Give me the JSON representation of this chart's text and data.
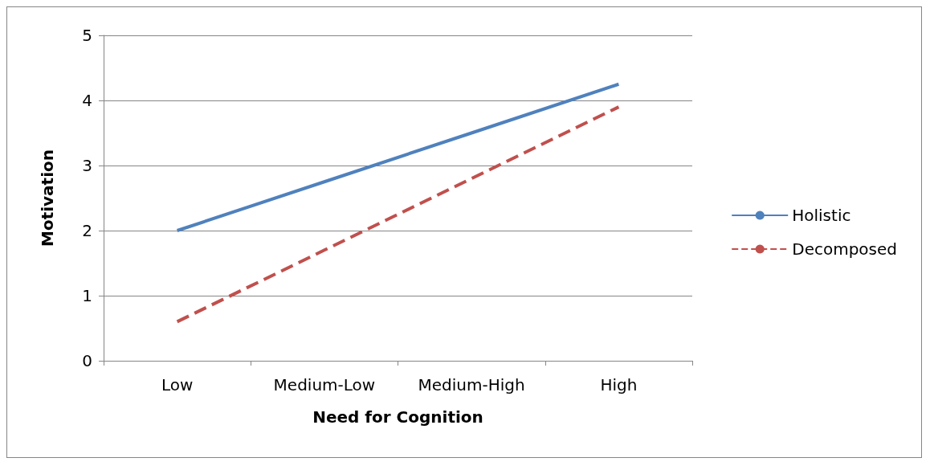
{
  "chart_data": {
    "type": "line",
    "xlabel": "Need for Cognition",
    "ylabel": "Motivation",
    "categories": [
      "Low",
      "Medium-Low",
      "Medium-High",
      "High"
    ],
    "series": [
      {
        "name": "Holistic",
        "color": "#4f81bd",
        "values": [
          2.0,
          2.75,
          3.5,
          4.25
        ],
        "line_style": "solid"
      },
      {
        "name": "Decomposed",
        "color": "#c0504d",
        "values": [
          0.6,
          1.7,
          2.8,
          3.9
        ],
        "line_style": "dashed"
      }
    ],
    "ylim": [
      0,
      5
    ],
    "yticks": [
      0,
      1,
      2,
      3,
      4,
      5
    ],
    "grid": "y",
    "legend": "right",
    "marker": "none"
  }
}
